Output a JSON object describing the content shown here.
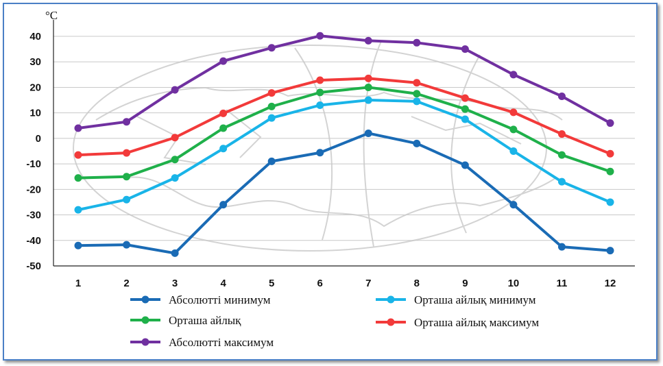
{
  "chart_data": {
    "type": "line",
    "unit_label": "°C",
    "categories": [
      "1",
      "2",
      "3",
      "4",
      "5",
      "6",
      "7",
      "8",
      "9",
      "10",
      "11",
      "12"
    ],
    "ylim": [
      -50,
      40
    ],
    "yticks": [
      40,
      30,
      20,
      10,
      0,
      -10,
      -20,
      -30,
      -40,
      -50
    ],
    "ytick_labels": [
      "40",
      "30",
      "20",
      "10",
      "0",
      "-10",
      "-20",
      "-30",
      "-40",
      "-50"
    ],
    "grid": "horizontal",
    "legend_position": "bottom",
    "series": [
      {
        "name": "Абсолютті минимум",
        "color": "#1a6bb5",
        "values": [
          -42,
          -41.7,
          -45,
          -26,
          -9,
          -5.6,
          2,
          -2,
          -10.5,
          -26,
          -42.5,
          -44
        ]
      },
      {
        "name": "Орташа айлық минимум",
        "color": "#19b4e8",
        "values": [
          -28,
          -24,
          -15.5,
          -4,
          8,
          13,
          15,
          14.5,
          7.5,
          -5,
          -17,
          -25
        ]
      },
      {
        "name": "Орташа айлық",
        "color": "#1fb04a",
        "values": [
          -15.5,
          -15,
          -8.3,
          4,
          12.5,
          18,
          20,
          17.5,
          11.5,
          3.5,
          -6.5,
          -13
        ]
      },
      {
        "name": "Орташа айлық максимум",
        "color": "#f23a3a",
        "values": [
          -6.5,
          -5.7,
          0.3,
          9.8,
          17.8,
          22.8,
          23.5,
          21.8,
          15.8,
          10.2,
          1.7,
          -6
        ]
      },
      {
        "name": "Абсолютті максимум",
        "color": "#7030a0",
        "values": [
          4,
          6.5,
          19,
          30.3,
          35.5,
          40.2,
          38.3,
          37.5,
          35,
          25,
          16.5,
          6
        ]
      }
    ]
  }
}
